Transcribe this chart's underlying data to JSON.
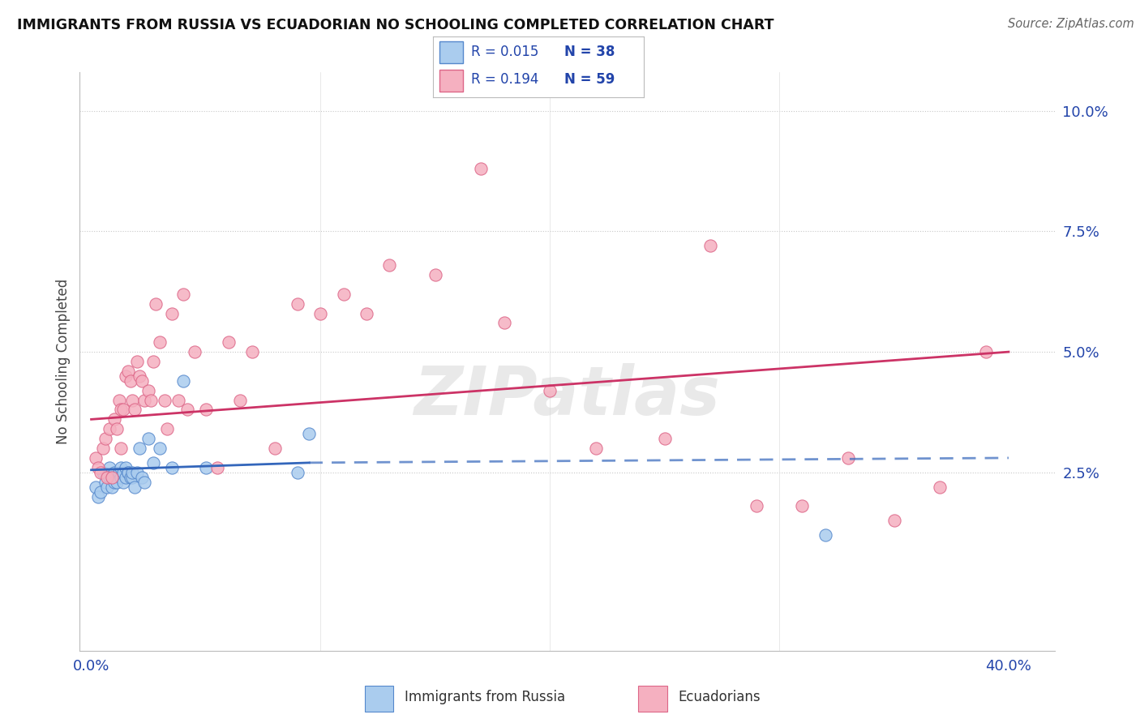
{
  "title": "IMMIGRANTS FROM RUSSIA VS ECUADORIAN NO SCHOOLING COMPLETED CORRELATION CHART",
  "source": "Source: ZipAtlas.com",
  "ylabel": "No Schooling Completed",
  "xlim": [
    -0.005,
    0.42
  ],
  "ylim": [
    -0.012,
    0.108
  ],
  "xticks": [
    0.0,
    0.1,
    0.2,
    0.3,
    0.4
  ],
  "xtick_labels": [
    "0.0%",
    "",
    "",
    "",
    "40.0%"
  ],
  "yticks": [
    0.0,
    0.025,
    0.05,
    0.075,
    0.1
  ],
  "ytick_labels": [
    "",
    "2.5%",
    "5.0%",
    "7.5%",
    "10.0%"
  ],
  "blue_label": "Immigrants from Russia",
  "pink_label": "Ecuadorians",
  "blue_R": "0.015",
  "blue_N": "38",
  "pink_R": "0.194",
  "pink_N": "59",
  "blue_color": "#aaccee",
  "pink_color": "#f5b0c0",
  "blue_edge": "#5588cc",
  "pink_edge": "#dd6688",
  "blue_line_color": "#3366bb",
  "pink_line_color": "#cc3366",
  "text_color": "#2244aa",
  "watermark": "ZIPatlas",
  "blue_x": [
    0.002,
    0.003,
    0.004,
    0.005,
    0.006,
    0.007,
    0.008,
    0.008,
    0.009,
    0.01,
    0.01,
    0.011,
    0.012,
    0.013,
    0.013,
    0.014,
    0.014,
    0.015,
    0.015,
    0.016,
    0.016,
    0.017,
    0.018,
    0.018,
    0.019,
    0.02,
    0.021,
    0.022,
    0.023,
    0.025,
    0.027,
    0.03,
    0.035,
    0.04,
    0.05,
    0.09,
    0.095,
    0.32
  ],
  "blue_y": [
    0.022,
    0.02,
    0.021,
    0.025,
    0.023,
    0.022,
    0.026,
    0.024,
    0.022,
    0.025,
    0.023,
    0.023,
    0.025,
    0.026,
    0.024,
    0.025,
    0.023,
    0.026,
    0.024,
    0.025,
    0.025,
    0.024,
    0.024,
    0.025,
    0.022,
    0.025,
    0.03,
    0.024,
    0.023,
    0.032,
    0.027,
    0.03,
    0.026,
    0.044,
    0.026,
    0.025,
    0.033,
    0.012
  ],
  "pink_x": [
    0.002,
    0.003,
    0.004,
    0.005,
    0.006,
    0.007,
    0.008,
    0.009,
    0.01,
    0.011,
    0.012,
    0.013,
    0.013,
    0.014,
    0.015,
    0.016,
    0.017,
    0.018,
    0.019,
    0.02,
    0.021,
    0.022,
    0.023,
    0.025,
    0.026,
    0.027,
    0.028,
    0.03,
    0.032,
    0.033,
    0.035,
    0.038,
    0.04,
    0.042,
    0.045,
    0.05,
    0.055,
    0.06,
    0.065,
    0.07,
    0.08,
    0.09,
    0.1,
    0.11,
    0.12,
    0.13,
    0.15,
    0.17,
    0.18,
    0.2,
    0.22,
    0.25,
    0.27,
    0.29,
    0.31,
    0.33,
    0.35,
    0.37,
    0.39
  ],
  "pink_y": [
    0.028,
    0.026,
    0.025,
    0.03,
    0.032,
    0.024,
    0.034,
    0.024,
    0.036,
    0.034,
    0.04,
    0.03,
    0.038,
    0.038,
    0.045,
    0.046,
    0.044,
    0.04,
    0.038,
    0.048,
    0.045,
    0.044,
    0.04,
    0.042,
    0.04,
    0.048,
    0.06,
    0.052,
    0.04,
    0.034,
    0.058,
    0.04,
    0.062,
    0.038,
    0.05,
    0.038,
    0.026,
    0.052,
    0.04,
    0.05,
    0.03,
    0.06,
    0.058,
    0.062,
    0.058,
    0.068,
    0.066,
    0.088,
    0.056,
    0.042,
    0.03,
    0.032,
    0.072,
    0.018,
    0.018,
    0.028,
    0.015,
    0.022,
    0.05
  ],
  "blue_line_x0": 0.0,
  "blue_line_x_solid_end": 0.095,
  "blue_line_x1": 0.4,
  "blue_line_y0": 0.0255,
  "blue_line_y_solid_end": 0.027,
  "blue_line_y1": 0.028,
  "pink_line_x0": 0.0,
  "pink_line_x1": 0.4,
  "pink_line_y0": 0.036,
  "pink_line_y1": 0.05
}
